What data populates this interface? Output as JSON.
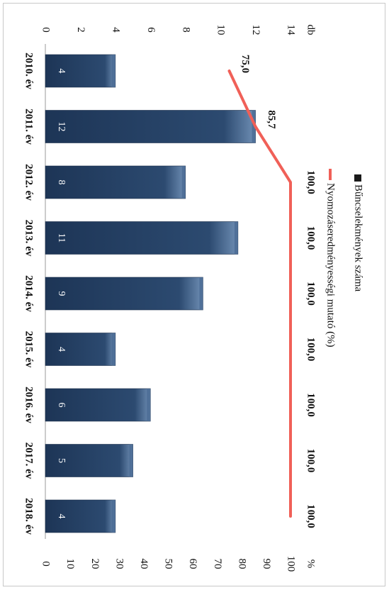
{
  "chart_data": {
    "type": "bar",
    "orientation": "rotated-90-clockwise",
    "categories": [
      "2010. év",
      "2011. év",
      "2012. év",
      "2013. év",
      "2014. év",
      "2015. év",
      "2016. év",
      "2017. év",
      "2018. év"
    ],
    "series": [
      {
        "name": "Bűncselekmények száma",
        "type": "bar",
        "axis": "left",
        "color": "#2c4a70",
        "values": [
          4,
          12,
          8,
          11,
          9,
          4,
          6,
          5,
          4
        ]
      },
      {
        "name": "Nyomozáseredményességi mutató (%)",
        "type": "line",
        "axis": "right",
        "color": "#f06058",
        "values": [
          75.0,
          85.7,
          100.0,
          100.0,
          100.0,
          100.0,
          100.0,
          100.0,
          100.0
        ],
        "labels": [
          "75,0",
          "85,7",
          "100,0",
          "100,0",
          "100,0",
          "100,0",
          "100,0",
          "100,0",
          "100,0"
        ]
      }
    ],
    "left_axis": {
      "unit": "db",
      "min": 0,
      "max": 14,
      "ticks": [
        0,
        2,
        4,
        6,
        8,
        10,
        12,
        14
      ]
    },
    "right_axis": {
      "unit": "%",
      "min": 0,
      "max": 100,
      "ticks": [
        0,
        10,
        20,
        30,
        40,
        50,
        60,
        70,
        80,
        90,
        100
      ]
    },
    "legend": {
      "position": "top"
    },
    "grid": false
  }
}
